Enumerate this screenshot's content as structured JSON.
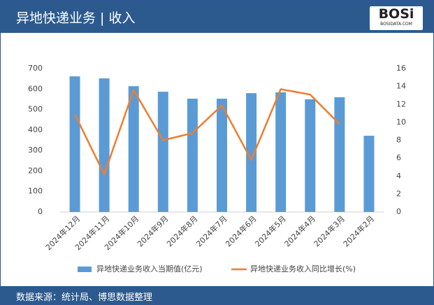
{
  "header": {
    "title": "异地快递业务 | 收入",
    "logo": "BOSi",
    "logo_sub": "BOSIDATA.COM"
  },
  "chart_data": {
    "type": "bar",
    "categories": [
      "2024年12月",
      "2024年11月",
      "2024年10月",
      "2024年9月",
      "2024年8月",
      "2024年7月",
      "2024年6月",
      "2024年5月",
      "2024年4月",
      "2024年3月",
      "2024年2月"
    ],
    "series": [
      {
        "name": "异地快递业务收入当期值(亿元)",
        "type": "bar",
        "color": "#5b9bd5",
        "values": [
          662,
          652,
          614,
          587,
          553,
          553,
          580,
          584,
          550,
          560,
          372
        ]
      },
      {
        "name": "异地快递业务收入同比增长(%)",
        "type": "line",
        "axis": "y2",
        "color": "#ed7d31",
        "values": [
          10.9,
          4.2,
          13.6,
          8.0,
          8.8,
          11.9,
          5.8,
          13.7,
          13.1,
          9.8,
          null
        ]
      }
    ],
    "ylim": [
      0,
      700
    ],
    "yticks": [
      0,
      100,
      200,
      300,
      400,
      500,
      600,
      700
    ],
    "y2lim": [
      0,
      16
    ],
    "y2ticks": [
      0,
      2,
      4,
      6,
      8,
      10,
      12,
      14,
      16
    ],
    "legend": "bottom"
  },
  "footer": {
    "source": "数据来源：统计局、博思数据整理"
  }
}
